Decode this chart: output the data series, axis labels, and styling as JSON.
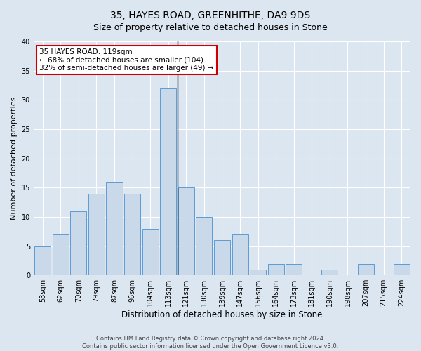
{
  "title": "35, HAYES ROAD, GREENHITHE, DA9 9DS",
  "subtitle": "Size of property relative to detached houses in Stone",
  "xlabel": "Distribution of detached houses by size in Stone",
  "ylabel": "Number of detached properties",
  "categories": [
    "53sqm",
    "62sqm",
    "70sqm",
    "79sqm",
    "87sqm",
    "96sqm",
    "104sqm",
    "113sqm",
    "121sqm",
    "130sqm",
    "139sqm",
    "147sqm",
    "156sqm",
    "164sqm",
    "173sqm",
    "181sqm",
    "190sqm",
    "198sqm",
    "207sqm",
    "215sqm",
    "224sqm"
  ],
  "values": [
    5,
    7,
    11,
    14,
    16,
    14,
    8,
    32,
    15,
    10,
    6,
    7,
    1,
    2,
    2,
    0,
    1,
    0,
    2,
    0,
    2
  ],
  "bar_color": "#c9d9ea",
  "bar_edge_color": "#5b9bd5",
  "background_color": "#dce6f1",
  "vline_x": 7.5,
  "vline_color": "#000000",
  "annotation_title": "35 HAYES ROAD: 119sqm",
  "annotation_line1": "← 68% of detached houses are smaller (104)",
  "annotation_line2": "32% of semi-detached houses are larger (49) →",
  "annotation_box_facecolor": "#ffffff",
  "annotation_box_edgecolor": "#cc0000",
  "ylim": [
    0,
    40
  ],
  "yticks": [
    0,
    5,
    10,
    15,
    20,
    25,
    30,
    35,
    40
  ],
  "footer_line1": "Contains HM Land Registry data © Crown copyright and database right 2024.",
  "footer_line2": "Contains public sector information licensed under the Open Government Licence v3.0.",
  "title_fontsize": 10,
  "subtitle_fontsize": 9,
  "tick_fontsize": 7,
  "ylabel_fontsize": 8,
  "xlabel_fontsize": 8.5,
  "annotation_fontsize": 7.5,
  "footer_fontsize": 6
}
